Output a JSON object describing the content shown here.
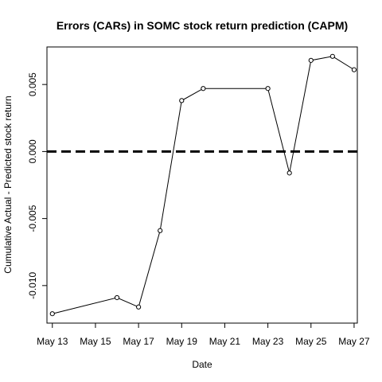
{
  "chart_data": {
    "type": "line",
    "title": "Errors (CARs) in SOMC stock return prediction (CAPM)",
    "xlabel": "Date",
    "ylabel": "Cumulative Actual - Predicted stock return",
    "x_ticks": [
      "May 13",
      "May 15",
      "May 17",
      "May 19",
      "May 21",
      "May 23",
      "May 25",
      "May 27"
    ],
    "y_ticks": [
      "-0.010",
      "-0.005",
      "0.000",
      "0.005"
    ],
    "xlim": [
      "2024-05-12.75",
      "2024-05-27.15"
    ],
    "ylim": [
      -0.0128,
      0.0078
    ],
    "reference_line": {
      "y": 0.0,
      "style": "dashed"
    },
    "series": [
      {
        "x": [
          "2024-05-13",
          "2024-05-16",
          "2024-05-17",
          "2024-05-18",
          "2024-05-19",
          "2024-05-20",
          "2024-05-23",
          "2024-05-24",
          "2024-05-25",
          "2024-05-26",
          "2024-05-27"
        ],
        "y": [
          -0.0121,
          -0.0109,
          -0.0116,
          -0.0059,
          0.0038,
          0.0047,
          0.0047,
          -0.0016,
          0.0068,
          0.0071,
          0.0061
        ]
      }
    ]
  }
}
